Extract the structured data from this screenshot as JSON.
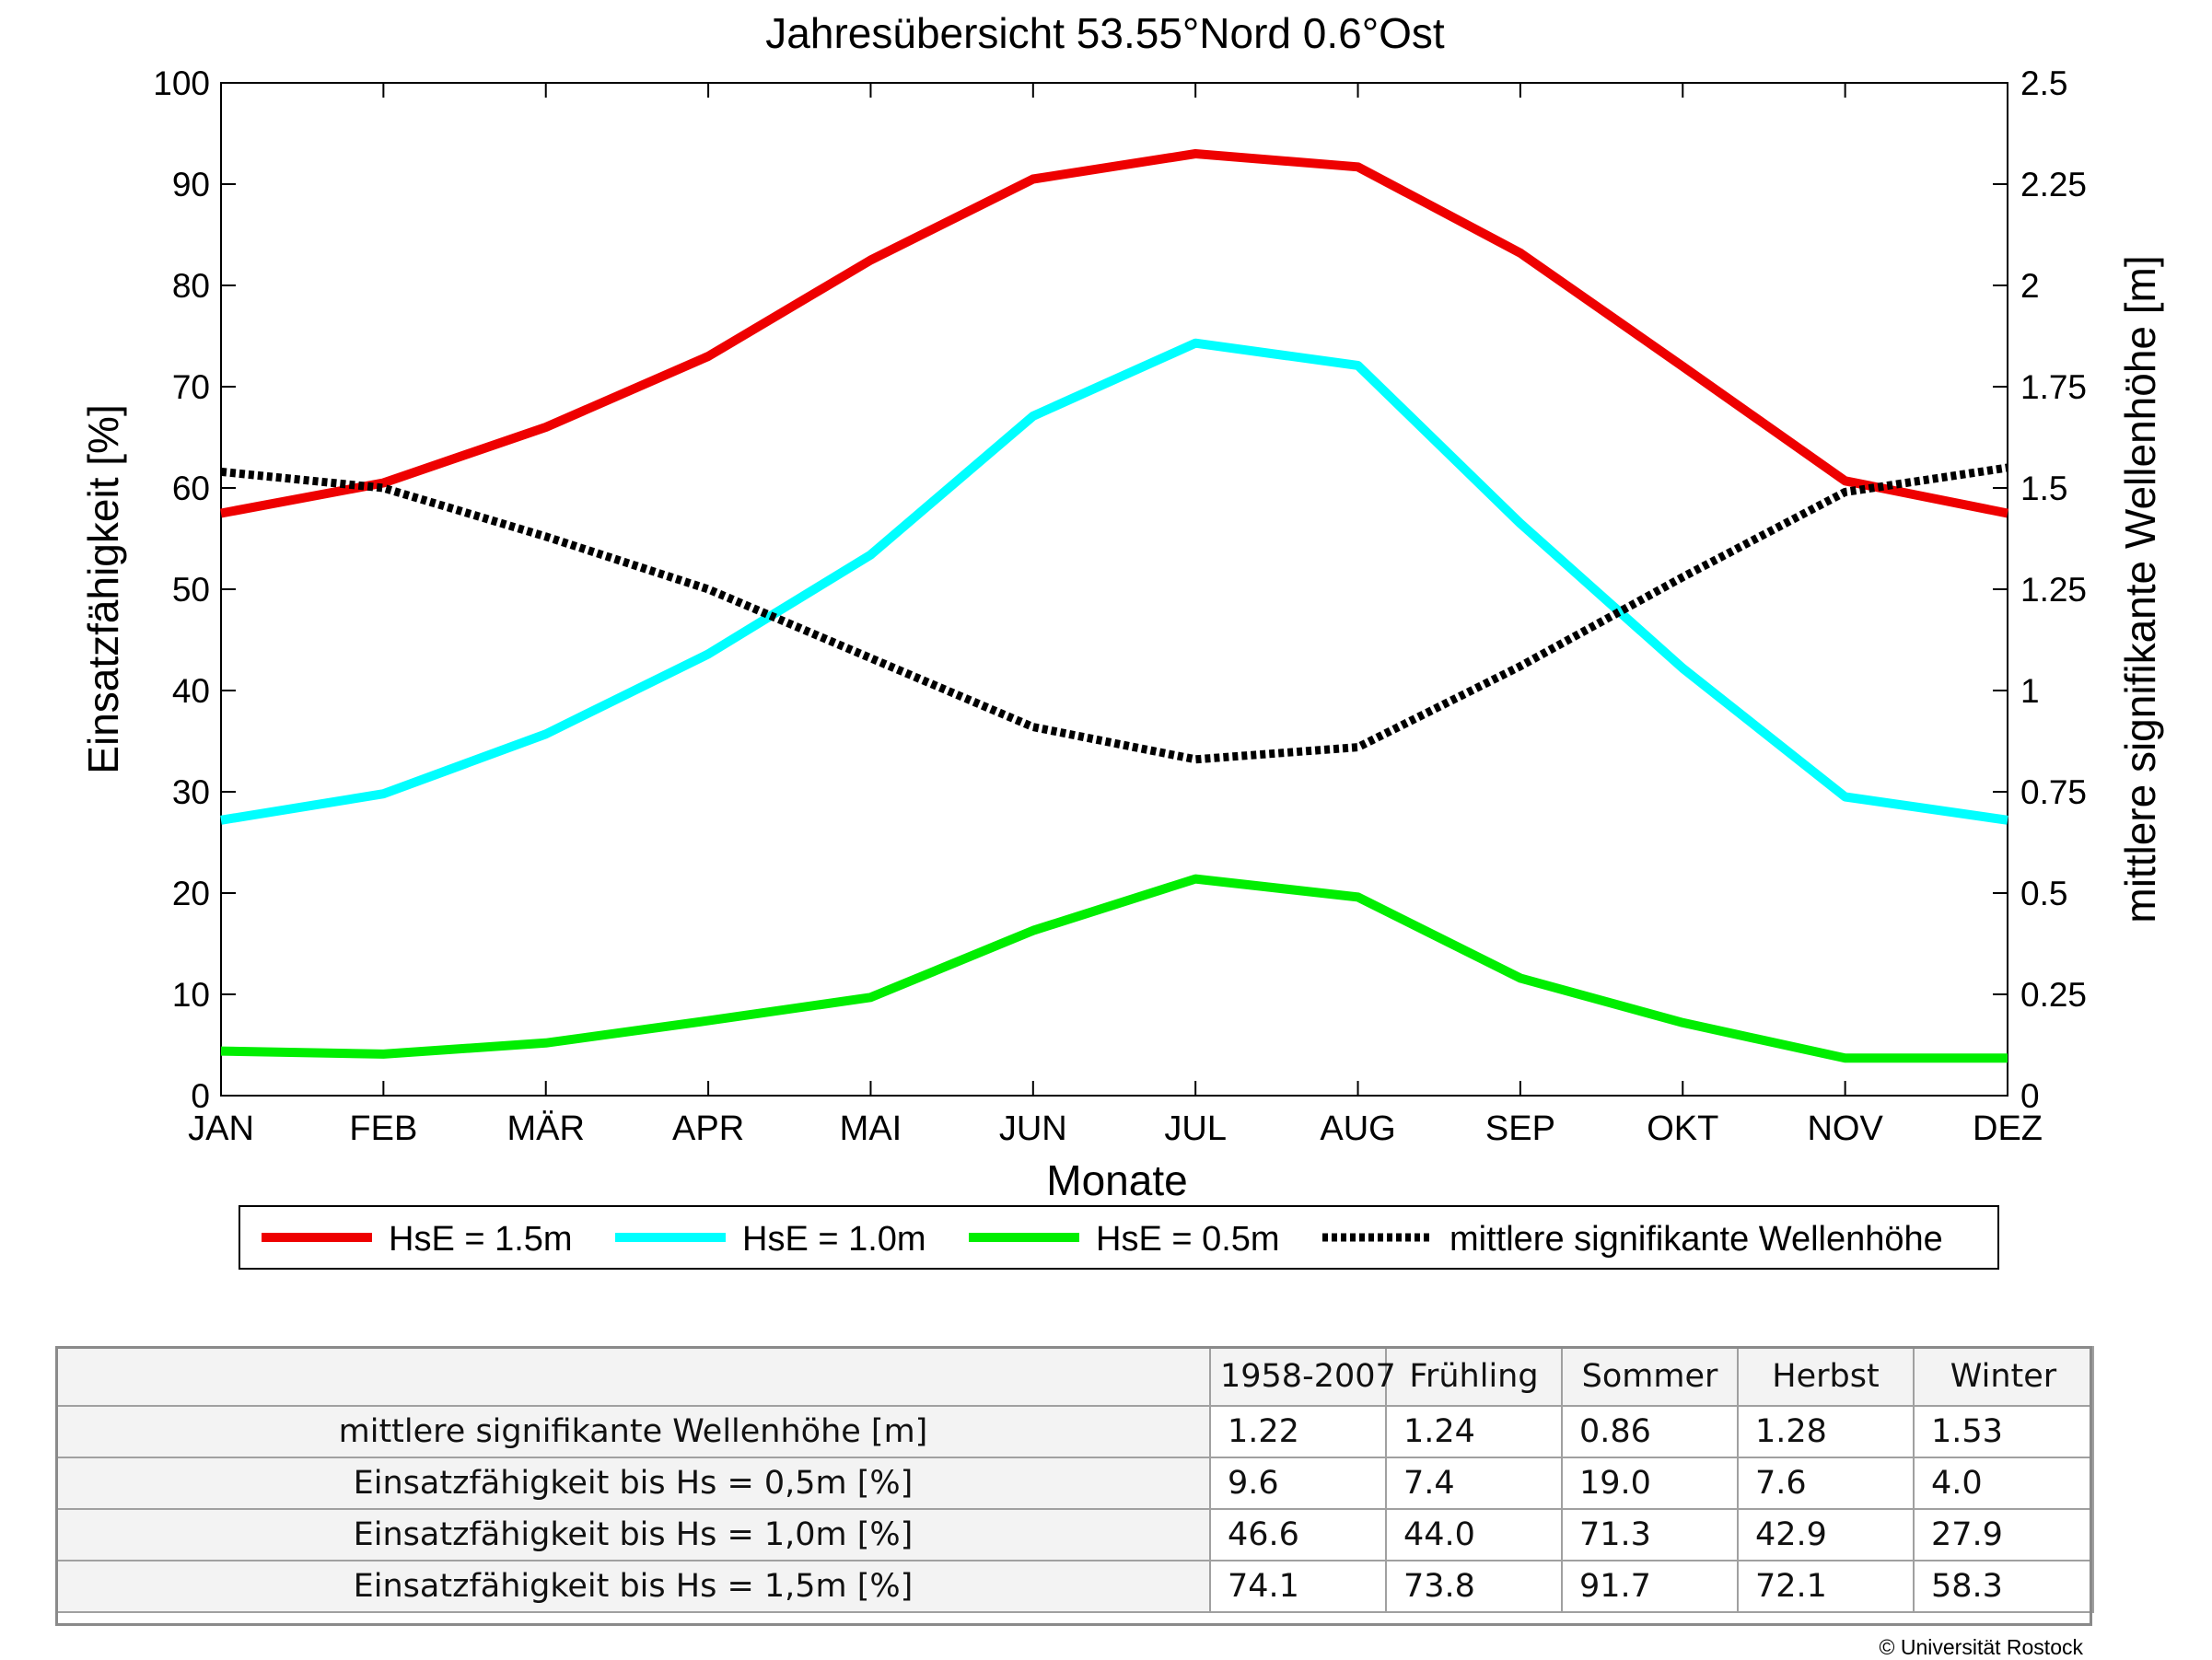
{
  "chart_data": {
    "type": "line",
    "title": "Jahresübersicht  53.55°Nord  0.6°Ost",
    "xlabel": "Monate",
    "ylabel": "Einsatzfähigkeit [%]",
    "y2label": "mittlere signifikante Wellenhöhe [m]",
    "categories": [
      "JAN",
      "FEB",
      "MÄR",
      "APR",
      "MAI",
      "JUN",
      "JUL",
      "AUG",
      "SEP",
      "OKT",
      "NOV",
      "DEZ"
    ],
    "ylim": [
      0,
      100
    ],
    "yticks": [
      "0",
      "10",
      "20",
      "30",
      "40",
      "50",
      "60",
      "70",
      "80",
      "90",
      "100"
    ],
    "y2lim": [
      0,
      2.5
    ],
    "y2ticks": [
      "0",
      "0.25",
      "0.5",
      "0.75",
      "1",
      "1.25",
      "1.5",
      "1.75",
      "2",
      "2.25",
      "2.5"
    ],
    "grid": false,
    "legend_placement": "bottom",
    "series": [
      {
        "name": "HsE = 1.5m",
        "axis": "left",
        "color": "#ee0000",
        "style": "solid",
        "values": [
          57.5,
          60.5,
          66,
          73,
          82.5,
          90.5,
          93,
          91.7,
          83.2,
          72,
          60.7,
          57.5
        ]
      },
      {
        "name": "HsE = 1.0m",
        "axis": "left",
        "color": "#00ffff",
        "style": "solid",
        "values": [
          27.2,
          29.8,
          35.7,
          43.6,
          53.4,
          67.1,
          74.3,
          72.1,
          56.5,
          42.2,
          29.5,
          27.2
        ]
      },
      {
        "name": "HsE = 0.5m",
        "axis": "left",
        "color": "#00ee00",
        "style": "solid",
        "values": [
          4.4,
          4.1,
          5.2,
          7.4,
          9.7,
          16.3,
          21.4,
          19.6,
          11.6,
          7.2,
          3.7,
          3.7
        ]
      },
      {
        "name": "mittlere signifikante Wellenhöhe",
        "axis": "right",
        "color": "#000000",
        "style": "dotted",
        "values": [
          1.54,
          1.5,
          1.38,
          1.25,
          1.08,
          0.91,
          0.83,
          0.86,
          1.06,
          1.28,
          1.49,
          1.55
        ]
      }
    ]
  },
  "table": {
    "columns": [
      "1958-2007",
      "Frühling",
      "Sommer",
      "Herbst",
      "Winter"
    ],
    "rows": [
      {
        "label": "mittlere signifikante Wellenhöhe [m]",
        "values": [
          "1.22",
          "1.24",
          "0.86",
          "1.28",
          "1.53"
        ]
      },
      {
        "label": "Einsatzfähigkeit bis Hs = 0,5m [%]",
        "values": [
          "9.6",
          "7.4",
          "19.0",
          "7.6",
          "4.0"
        ]
      },
      {
        "label": "Einsatzfähigkeit bis Hs = 1,0m [%]",
        "values": [
          "46.6",
          "44.0",
          "71.3",
          "42.9",
          "27.9"
        ]
      },
      {
        "label": "Einsatzfähigkeit bis Hs = 1,5m [%]",
        "values": [
          "74.1",
          "73.8",
          "91.7",
          "72.1",
          "58.3"
        ]
      }
    ]
  },
  "footer": {
    "copyright": "© Universität Rostock"
  }
}
